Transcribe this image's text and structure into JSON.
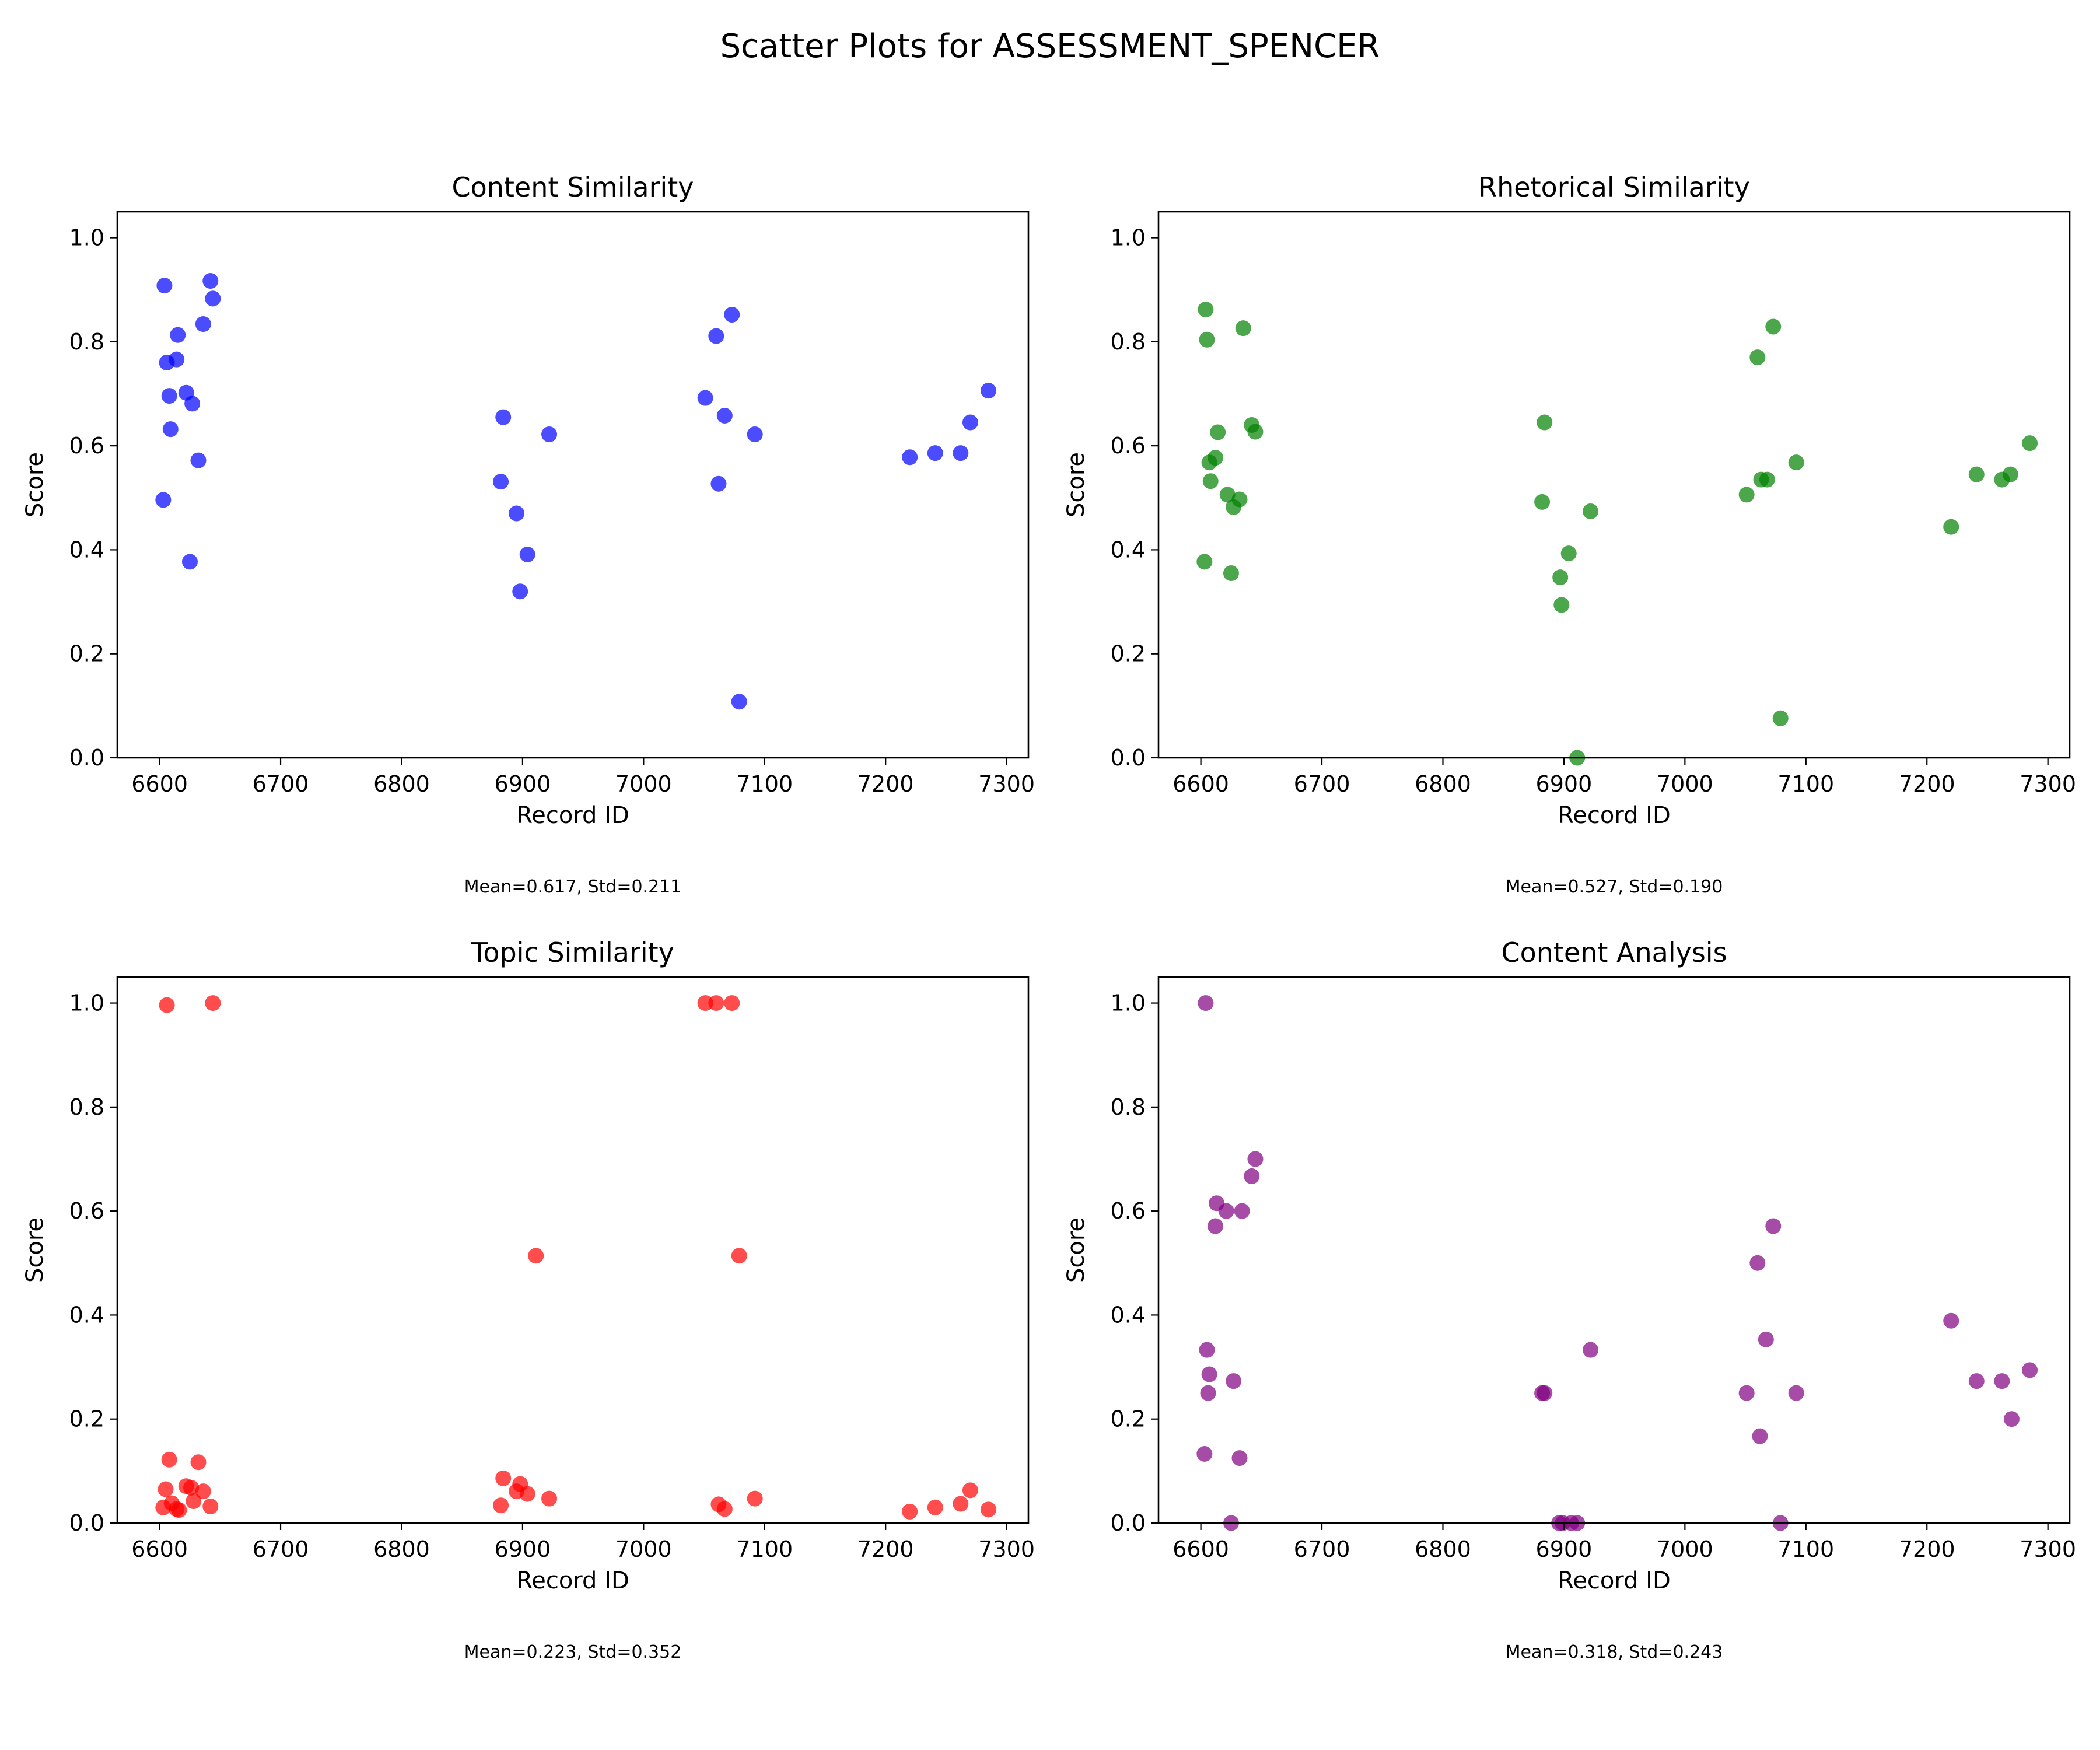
{
  "figure": {
    "title": "Scatter Plots for ASSESSMENT_SPENCER"
  },
  "chart_data": [
    {
      "type": "scatter",
      "title": "Content Similarity",
      "xlabel": "Record ID",
      "ylabel": "Score",
      "xlim": [
        6565,
        7318
      ],
      "ylim": [
        0,
        1.05
      ],
      "xticks": [
        6600,
        6700,
        6800,
        6900,
        7000,
        7100,
        7200,
        7300
      ],
      "yticks": [
        0.0,
        0.2,
        0.4,
        0.6,
        0.8,
        1.0
      ],
      "color": "#0000ff",
      "grid": false,
      "stats_text": "Mean=0.617, Std=0.211",
      "points": [
        [
          6604,
          0.908
        ],
        [
          6606,
          0.76
        ],
        [
          6608,
          0.696
        ],
        [
          6609,
          0.632
        ],
        [
          6603,
          0.496
        ],
        [
          6614,
          0.766
        ],
        [
          6615,
          0.813
        ],
        [
          6622,
          0.702
        ],
        [
          6627,
          0.681
        ],
        [
          6632,
          0.572
        ],
        [
          6636,
          0.834
        ],
        [
          6642,
          0.917
        ],
        [
          6644,
          0.883
        ],
        [
          6625,
          0.377
        ],
        [
          6882,
          0.531
        ],
        [
          6884,
          0.655
        ],
        [
          6895,
          0.47
        ],
        [
          6898,
          0.32
        ],
        [
          6904,
          0.391
        ],
        [
          6922,
          0.622
        ],
        [
          7051,
          0.692
        ],
        [
          7060,
          0.811
        ],
        [
          7062,
          0.527
        ],
        [
          7067,
          0.658
        ],
        [
          7073,
          0.852
        ],
        [
          7079,
          0.108
        ],
        [
          7092,
          0.622
        ],
        [
          7220,
          0.578
        ],
        [
          7241,
          0.586
        ],
        [
          7262,
          0.586
        ],
        [
          7270,
          0.645
        ],
        [
          7285,
          0.706
        ]
      ]
    },
    {
      "type": "scatter",
      "title": "Rhetorical Similarity",
      "xlabel": "Record ID",
      "ylabel": "Score",
      "xlim": [
        6565,
        7318
      ],
      "ylim": [
        0,
        1.05
      ],
      "xticks": [
        6600,
        6700,
        6800,
        6900,
        7000,
        7100,
        7200,
        7300
      ],
      "yticks": [
        0.0,
        0.2,
        0.4,
        0.6,
        0.8,
        1.0
      ],
      "color": "#008000",
      "grid": false,
      "stats_text": "Mean=0.527, Std=0.190",
      "points": [
        [
          6604,
          0.862
        ],
        [
          6605,
          0.804
        ],
        [
          6607,
          0.568
        ],
        [
          6608,
          0.532
        ],
        [
          6603,
          0.377
        ],
        [
          6612,
          0.577
        ],
        [
          6614,
          0.626
        ],
        [
          6622,
          0.506
        ],
        [
          6627,
          0.482
        ],
        [
          6632,
          0.497
        ],
        [
          6635,
          0.826
        ],
        [
          6642,
          0.64
        ],
        [
          6645,
          0.627
        ],
        [
          6625,
          0.355
        ],
        [
          6882,
          0.492
        ],
        [
          6884,
          0.645
        ],
        [
          6897,
          0.347
        ],
        [
          6898,
          0.294
        ],
        [
          6904,
          0.393
        ],
        [
          6911,
          0.0
        ],
        [
          6922,
          0.474
        ],
        [
          7051,
          0.506
        ],
        [
          7060,
          0.77
        ],
        [
          7063,
          0.535
        ],
        [
          7068,
          0.535
        ],
        [
          7073,
          0.829
        ],
        [
          7079,
          0.076
        ],
        [
          7092,
          0.568
        ],
        [
          7220,
          0.444
        ],
        [
          7241,
          0.545
        ],
        [
          7262,
          0.535
        ],
        [
          7269,
          0.545
        ],
        [
          7285,
          0.605
        ]
      ]
    },
    {
      "type": "scatter",
      "title": "Topic Similarity",
      "xlabel": "Record ID",
      "ylabel": "Score",
      "xlim": [
        6565,
        7318
      ],
      "ylim": [
        0,
        1.05
      ],
      "xticks": [
        6600,
        6700,
        6800,
        6900,
        7000,
        7100,
        7200,
        7300
      ],
      "yticks": [
        0.0,
        0.2,
        0.4,
        0.6,
        0.8,
        1.0
      ],
      "color": "#ff0000",
      "grid": false,
      "stats_text": "Mean=0.223, Std=0.352",
      "points": [
        [
          6606,
          0.996
        ],
        [
          6644,
          1.0
        ],
        [
          6603,
          0.03
        ],
        [
          6605,
          0.065
        ],
        [
          6608,
          0.122
        ],
        [
          6610,
          0.038
        ],
        [
          6614,
          0.027
        ],
        [
          6616,
          0.025
        ],
        [
          6622,
          0.071
        ],
        [
          6626,
          0.068
        ],
        [
          6628,
          0.042
        ],
        [
          6632,
          0.117
        ],
        [
          6636,
          0.061
        ],
        [
          6642,
          0.032
        ],
        [
          6882,
          0.034
        ],
        [
          6884,
          0.086
        ],
        [
          6895,
          0.061
        ],
        [
          6898,
          0.075
        ],
        [
          6904,
          0.056
        ],
        [
          6911,
          0.514
        ],
        [
          6922,
          0.047
        ],
        [
          7051,
          1.0
        ],
        [
          7060,
          1.0
        ],
        [
          7073,
          1.0
        ],
        [
          7062,
          0.036
        ],
        [
          7067,
          0.027
        ],
        [
          7079,
          0.514
        ],
        [
          7092,
          0.047
        ],
        [
          7220,
          0.022
        ],
        [
          7241,
          0.03
        ],
        [
          7262,
          0.037
        ],
        [
          7270,
          0.063
        ],
        [
          7285,
          0.026
        ]
      ]
    },
    {
      "type": "scatter",
      "title": "Content Analysis",
      "xlabel": "Record ID",
      "ylabel": "Score",
      "xlim": [
        6565,
        7318
      ],
      "ylim": [
        0,
        1.05
      ],
      "xticks": [
        6600,
        6700,
        6800,
        6900,
        7000,
        7100,
        7200,
        7300
      ],
      "yticks": [
        0.0,
        0.2,
        0.4,
        0.6,
        0.8,
        1.0
      ],
      "color": "#800080",
      "grid": false,
      "stats_text": "Mean=0.318, Std=0.243",
      "points": [
        [
          6604,
          1.0
        ],
        [
          6605,
          0.333
        ],
        [
          6606,
          0.25
        ],
        [
          6607,
          0.286
        ],
        [
          6603,
          0.133
        ],
        [
          6612,
          0.571
        ],
        [
          6613,
          0.615
        ],
        [
          6621,
          0.6
        ],
        [
          6625,
          0.0
        ],
        [
          6627,
          0.273
        ],
        [
          6632,
          0.125
        ],
        [
          6634,
          0.6
        ],
        [
          6642,
          0.667
        ],
        [
          6645,
          0.7
        ],
        [
          6882,
          0.25
        ],
        [
          6884,
          0.25
        ],
        [
          6896,
          0.0
        ],
        [
          6899,
          0.0
        ],
        [
          6906,
          0.0
        ],
        [
          6911,
          0.0
        ],
        [
          6922,
          0.333
        ],
        [
          7051,
          0.25
        ],
        [
          7060,
          0.5
        ],
        [
          7062,
          0.167
        ],
        [
          7067,
          0.353
        ],
        [
          7073,
          0.571
        ],
        [
          7079,
          0.0
        ],
        [
          7092,
          0.25
        ],
        [
          7220,
          0.389
        ],
        [
          7241,
          0.273
        ],
        [
          7262,
          0.273
        ],
        [
          7270,
          0.2
        ],
        [
          7285,
          0.294
        ]
      ]
    }
  ]
}
